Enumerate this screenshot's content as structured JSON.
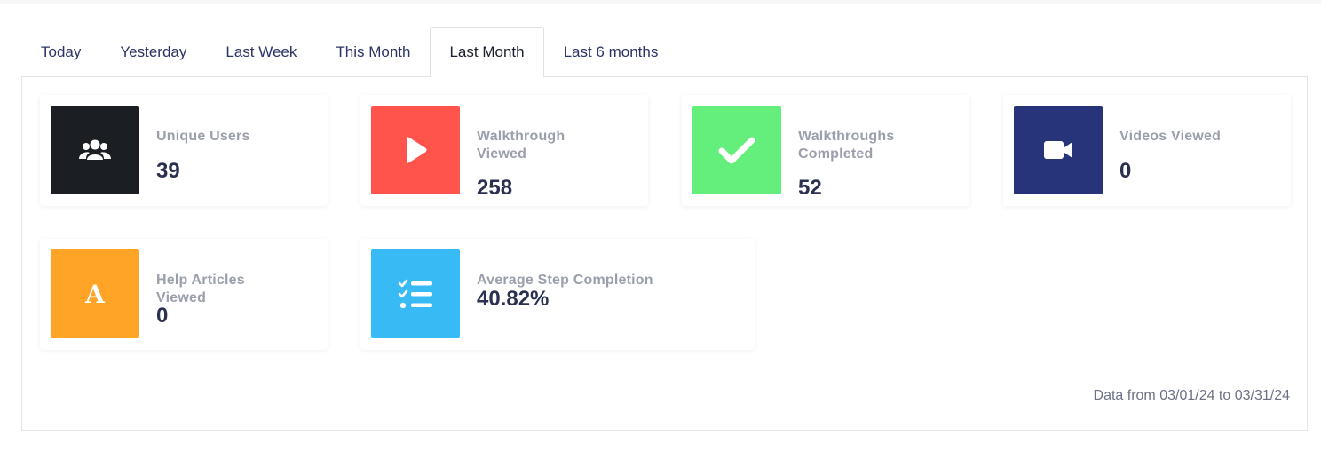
{
  "tabs": [
    "Today",
    "Yesterday",
    "Last Week",
    "This Month",
    "Last Month",
    "Last 6 months"
  ],
  "active_tab": "Last Month",
  "stats": [
    {
      "label": "Unique Users",
      "value": "39",
      "icon": "users-icon",
      "color": "#1b1e23"
    },
    {
      "label": "Walkthrough Viewed",
      "value": "258",
      "icon": "play-icon",
      "color": "#ff544c"
    },
    {
      "label": "Walkthroughs Completed",
      "value": "52",
      "icon": "check-icon",
      "color": "#64ee7b"
    },
    {
      "label": "Videos Viewed",
      "value": "0",
      "icon": "video-camera-icon",
      "color": "#27347a"
    },
    {
      "label": "Help Articles Viewed",
      "value": "0",
      "icon": "article-a-icon",
      "color": "#ffa426"
    },
    {
      "label": "Average Step Completion",
      "value": "40.82%",
      "icon": "checklist-icon",
      "color": "#38baf4"
    }
  ],
  "footnote": "Data from 03/01/24 to 03/31/24"
}
